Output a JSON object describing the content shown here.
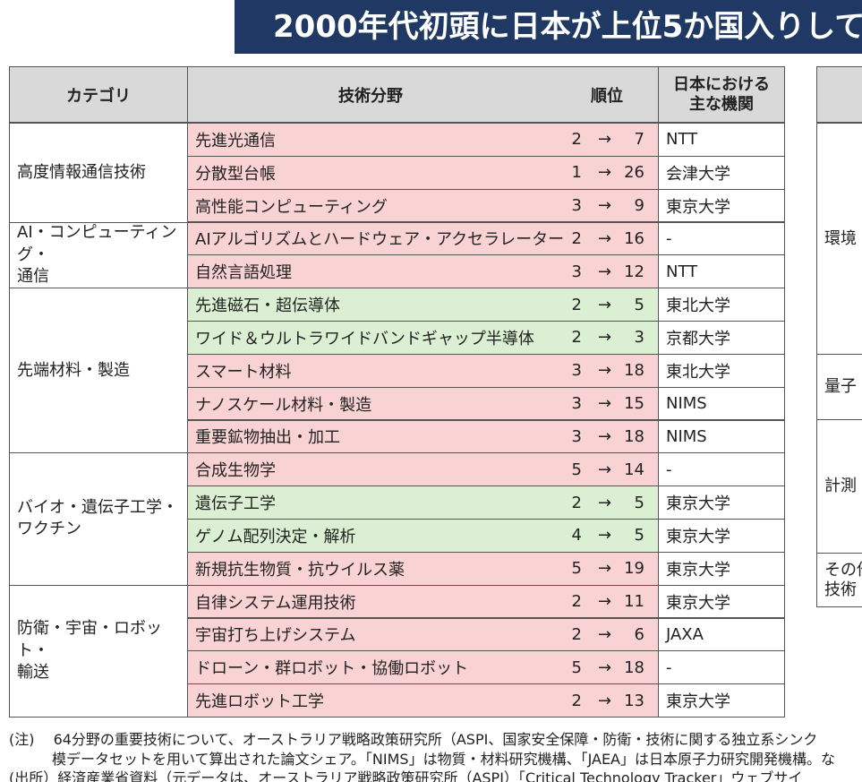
{
  "header": {
    "title": "2000年代初頭に日本が上位5か国入りして"
  },
  "table": {
    "columns": [
      "カテゴリ",
      "技術分野",
      "順位",
      "日本における\n主な機関"
    ],
    "rank_arrow": "→",
    "header_color": "#d9d9d9",
    "groups": [
      {
        "category": "高度情報通信技術",
        "rows": [
          {
            "field": "先進光通信",
            "from": 2,
            "to": 7,
            "institution": "NTT",
            "color": "#f9d3d3"
          },
          {
            "field": "分散型台帳",
            "from": 1,
            "to": 26,
            "institution": "会津大学",
            "color": "#f9d3d3"
          },
          {
            "field": "高性能コンピューティング",
            "from": 3,
            "to": 9,
            "institution": "東京大学",
            "color": "#f9d3d3"
          }
        ]
      },
      {
        "category": "AI・コンピューティング・\n通信",
        "rows": [
          {
            "field": "AIアルゴリズムとハードウェア・アクセラレーター",
            "from": 2,
            "to": 16,
            "institution": "-",
            "color": "#f9d3d3"
          },
          {
            "field": "自然言語処理",
            "from": 3,
            "to": 12,
            "institution": "NTT",
            "color": "#f9d3d3"
          }
        ]
      },
      {
        "category": "先端材料・製造",
        "rows": [
          {
            "field": "先進磁石・超伝導体",
            "from": 2,
            "to": 5,
            "institution": "東北大学",
            "color": "#dbf0d3"
          },
          {
            "field": "ワイド＆ウルトラワイドバンドギャップ半導体",
            "from": 2,
            "to": 3,
            "institution": "京都大学",
            "color": "#dbf0d3"
          },
          {
            "field": "スマート材料",
            "from": 3,
            "to": 18,
            "institution": "東北大学",
            "color": "#f9d3d3"
          },
          {
            "field": "ナノスケール材料・製造",
            "from": 3,
            "to": 15,
            "institution": "NIMS",
            "color": "#f9d3d3"
          },
          {
            "field": "重要鉱物抽出・加工",
            "from": 3,
            "to": 18,
            "institution": "NIMS",
            "color": "#f9d3d3"
          }
        ]
      },
      {
        "category": "バイオ・遺伝子工学・\nワクチン",
        "rows": [
          {
            "field": "合成生物学",
            "from": 5,
            "to": 14,
            "institution": "-",
            "color": "#f9d3d3"
          },
          {
            "field": "遺伝子工学",
            "from": 2,
            "to": 5,
            "institution": "東京大学",
            "color": "#dbf0d3"
          },
          {
            "field": "ゲノム配列決定・解析",
            "from": 4,
            "to": 5,
            "institution": "東京大学",
            "color": "#dbf0d3"
          },
          {
            "field": "新規抗生物質・抗ウイルス薬",
            "from": 5,
            "to": 19,
            "institution": "東京大学",
            "color": "#f9d3d3"
          }
        ]
      },
      {
        "category": "防衛・宇宙・ロボット・\n輸送",
        "rows": [
          {
            "field": "自律システム運用技術",
            "from": 2,
            "to": 11,
            "institution": "東京大学",
            "color": "#f9d3d3"
          },
          {
            "field": "宇宙打ち上げシステム",
            "from": 2,
            "to": 6,
            "institution": "JAXA",
            "color": "#f9d3d3"
          },
          {
            "field": "ドローン・群ロボット・協働ロボット",
            "from": 5,
            "to": 18,
            "institution": "-",
            "color": "#f9d3d3"
          },
          {
            "field": "先進ロボット工学",
            "from": 2,
            "to": 13,
            "institution": "東京大学",
            "color": "#f9d3d3"
          }
        ]
      }
    ]
  },
  "side_table": {
    "categories": [
      "環境",
      "量子",
      "計測",
      "その他\n技術"
    ]
  },
  "notes": [
    "(注)　 64分野の重要技術について、オーストラリア戦略政策研究所（ASPI、国家安全保障・防衛・技術に関する独立系シンク",
    "　　　模データセットを用いて算出された論文シェア。「NIMS」は物質・材料研究機構、「JAEA」は日本原子力研究開発機構。な",
    "(出所）経済産業省資料（元データは、オーストラリア戦略政策研究所（ASPI）「Critical Technology Tracker」ウェブサイ"
  ]
}
